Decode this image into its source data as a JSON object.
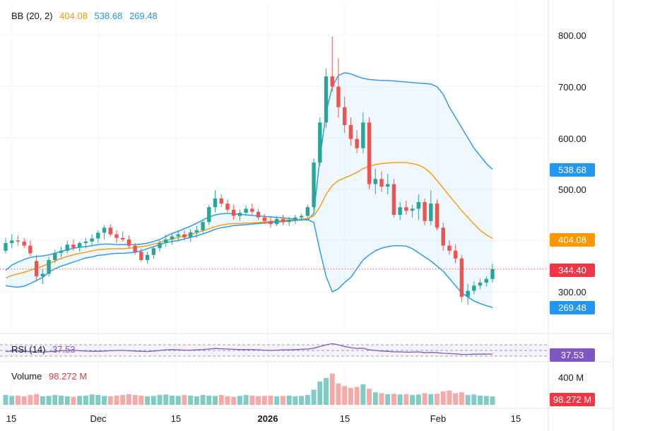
{
  "colors": {
    "up": "#26a69a",
    "down": "#ef5350",
    "vol_up": "#80cbc4",
    "vol_down": "#f7a9a7",
    "bb_band": "#2196f3",
    "bb_mid": "#ff9800",
    "rsi": "#7e57c2",
    "last_price": "#f23645"
  },
  "legend": {
    "bb": {
      "label": "BB (20, 2)",
      "basis": "404.08",
      "upper": "538.68",
      "lower": "269.48"
    },
    "rsi": {
      "label": "RSI (14)",
      "value": "37.53"
    },
    "volume": {
      "label": "Volume",
      "value": "98.272 M"
    }
  },
  "price_axis": {
    "ticks": [
      "800.00",
      "700.00",
      "600.00",
      "500.00",
      "300.00"
    ],
    "tag_upper": "538.68",
    "tag_basis": "404.08",
    "tag_last": "344.40",
    "tag_lower": "269.48",
    "tag_rsi": "37.53",
    "vol_tick": "400 M",
    "tag_volume": "98.272 M"
  },
  "time_axis": [
    "15",
    "Dec",
    "15",
    "2026",
    "15",
    "Feb",
    "15"
  ],
  "chart_data": {
    "type": "candlestick",
    "ylim": [
      230,
      840
    ],
    "last_price": 344.4,
    "candles": [
      [
        380,
        405,
        375,
        395
      ],
      [
        395,
        412,
        385,
        400
      ],
      [
        400,
        410,
        390,
        398
      ],
      [
        398,
        405,
        385,
        390
      ],
      [
        390,
        400,
        370,
        375
      ],
      [
        360,
        372,
        320,
        330
      ],
      [
        330,
        345,
        315,
        335
      ],
      [
        335,
        368,
        330,
        362
      ],
      [
        362,
        382,
        356,
        376
      ],
      [
        376,
        388,
        368,
        380
      ],
      [
        380,
        400,
        375,
        392
      ],
      [
        392,
        402,
        380,
        386
      ],
      [
        386,
        398,
        378,
        395
      ],
      [
        395,
        405,
        385,
        398
      ],
      [
        398,
        412,
        390,
        404
      ],
      [
        404,
        420,
        395,
        415
      ],
      [
        415,
        430,
        402,
        425
      ],
      [
        425,
        432,
        408,
        412
      ],
      [
        412,
        420,
        395,
        405
      ],
      [
        405,
        418,
        398,
        402
      ],
      [
        402,
        410,
        385,
        390
      ],
      [
        390,
        395,
        372,
        378
      ],
      [
        378,
        385,
        358,
        362
      ],
      [
        362,
        378,
        355,
        372
      ],
      [
        372,
        388,
        365,
        385
      ],
      [
        385,
        400,
        378,
        395
      ],
      [
        395,
        412,
        388,
        402
      ],
      [
        402,
        414,
        392,
        408
      ],
      [
        408,
        420,
        398,
        412
      ],
      [
        412,
        420,
        400,
        406
      ],
      [
        406,
        422,
        398,
        416
      ],
      [
        416,
        428,
        405,
        420
      ],
      [
        420,
        440,
        415,
        436
      ],
      [
        436,
        470,
        430,
        465
      ],
      [
        465,
        498,
        455,
        482
      ],
      [
        482,
        490,
        465,
        472
      ],
      [
        472,
        480,
        455,
        460
      ],
      [
        460,
        470,
        440,
        448
      ],
      [
        448,
        460,
        438,
        454
      ],
      [
        454,
        468,
        448,
        462
      ],
      [
        462,
        472,
        450,
        456
      ],
      [
        456,
        462,
        440,
        445
      ],
      [
        445,
        452,
        432,
        438
      ],
      [
        438,
        446,
        425,
        432
      ],
      [
        432,
        448,
        428,
        442
      ],
      [
        442,
        450,
        430,
        436
      ],
      [
        436,
        446,
        428,
        440
      ],
      [
        440,
        450,
        432,
        445
      ],
      [
        445,
        452,
        438,
        448
      ],
      [
        448,
        470,
        445,
        465
      ],
      [
        465,
        560,
        460,
        552
      ],
      [
        552,
        640,
        545,
        630
      ],
      [
        630,
        735,
        620,
        720
      ],
      [
        720,
        798,
        690,
        700
      ],
      [
        700,
        755,
        640,
        660
      ],
      [
        660,
        680,
        610,
        625
      ],
      [
        625,
        640,
        585,
        598
      ],
      [
        598,
        615,
        570,
        580
      ],
      [
        580,
        650,
        570,
        630
      ],
      [
        630,
        640,
        500,
        510
      ],
      [
        510,
        540,
        490,
        520
      ],
      [
        520,
        535,
        495,
        505
      ],
      [
        505,
        530,
        490,
        510
      ],
      [
        510,
        520,
        445,
        450
      ],
      [
        450,
        475,
        440,
        465
      ],
      [
        465,
        478,
        450,
        458
      ],
      [
        458,
        470,
        445,
        462
      ],
      [
        462,
        490,
        440,
        475
      ],
      [
        475,
        482,
        430,
        438
      ],
      [
        438,
        498,
        430,
        472
      ],
      [
        472,
        480,
        420,
        425
      ],
      [
        425,
        435,
        380,
        390
      ],
      [
        390,
        400,
        372,
        380
      ],
      [
        380,
        392,
        355,
        365
      ],
      [
        365,
        372,
        280,
        290
      ],
      [
        290,
        315,
        275,
        302
      ],
      [
        302,
        320,
        295,
        312
      ],
      [
        312,
        325,
        305,
        318
      ],
      [
        318,
        330,
        310,
        325
      ],
      [
        325,
        355,
        318,
        344.4
      ]
    ],
    "bb_upper": [
      342,
      352,
      358,
      363,
      367,
      369,
      370,
      372,
      375,
      379,
      382,
      385,
      387,
      388,
      390,
      392,
      393,
      393,
      392,
      392,
      392,
      392,
      393,
      395,
      398,
      402,
      408,
      414,
      418,
      423,
      428,
      434,
      440,
      446,
      450,
      452,
      453,
      452,
      451,
      450,
      449,
      448,
      447,
      446,
      445,
      444,
      443,
      442,
      441,
      440,
      453,
      560,
      650,
      700,
      722,
      727,
      725,
      720,
      716,
      714,
      713,
      712,
      712,
      711,
      710,
      709,
      708,
      707,
      706,
      705,
      700,
      685,
      660,
      640,
      620,
      600,
      580,
      565,
      550,
      538.68
    ],
    "bb_basis": [
      327,
      332,
      335,
      338,
      342,
      346,
      350,
      355,
      360,
      365,
      369,
      372,
      375,
      377,
      380,
      382,
      383,
      384,
      384,
      384,
      385,
      386,
      388,
      390,
      393,
      396,
      400,
      403,
      406,
      409,
      412,
      415,
      419,
      423,
      427,
      430,
      432,
      433,
      433,
      434,
      434,
      435,
      436,
      437,
      438,
      439,
      440,
      441,
      442,
      443,
      448,
      466,
      490,
      507,
      517,
      522,
      527,
      533,
      540,
      545,
      548,
      550,
      551,
      552,
      552,
      552,
      550,
      547,
      541,
      531,
      517,
      502,
      487,
      473,
      458,
      445,
      432,
      420,
      411,
      404.08
    ],
    "bb_lower": [
      312,
      310,
      309,
      311,
      316,
      322,
      328,
      338,
      345,
      350,
      354,
      358,
      362,
      366,
      368,
      371,
      372,
      374,
      375,
      375,
      376,
      377,
      380,
      384,
      388,
      392,
      396,
      398,
      400,
      403,
      406,
      409,
      413,
      417,
      422,
      425,
      427,
      429,
      430,
      431,
      432,
      433,
      434,
      435,
      436,
      437,
      438,
      439,
      440,
      441,
      435,
      380,
      330,
      300,
      306,
      318,
      328,
      345,
      362,
      372,
      380,
      385,
      388,
      390,
      390,
      389,
      384,
      376,
      368,
      360,
      350,
      340,
      326,
      312,
      298,
      290,
      282,
      277,
      273,
      269.48
    ],
    "rsi": [
      46,
      48,
      49,
      47,
      46,
      45,
      44,
      46,
      47,
      49,
      50,
      51,
      49,
      48,
      47,
      47,
      48,
      49,
      50,
      50,
      49,
      48,
      47,
      46,
      48,
      50,
      52,
      53,
      52,
      51,
      51,
      52,
      53,
      55,
      57,
      56,
      55,
      54,
      53,
      53,
      53,
      52,
      51,
      50,
      51,
      52,
      52,
      53,
      54,
      55,
      58,
      64,
      70,
      74,
      70,
      64,
      60,
      57,
      58,
      52,
      50,
      48,
      47,
      45,
      45,
      44,
      44,
      45,
      42,
      43,
      42,
      40,
      39,
      38,
      36,
      36,
      37,
      37,
      37,
      37.53
    ],
    "volume": [
      55,
      50,
      52,
      48,
      55,
      60,
      48,
      50,
      55,
      52,
      48,
      45,
      50,
      52,
      58,
      55,
      50,
      48,
      52,
      55,
      60,
      55,
      52,
      48,
      50,
      55,
      58,
      52,
      50,
      55,
      52,
      48,
      55,
      52,
      50,
      55,
      48,
      45,
      50,
      55,
      52,
      48,
      50,
      52,
      48,
      50,
      52,
      48,
      50,
      55,
      85,
      130,
      150,
      175,
      120,
      105,
      95,
      100,
      115,
      90,
      70,
      65,
      60,
      62,
      58,
      60,
      55,
      58,
      65,
      60,
      62,
      75,
      80,
      65,
      70,
      55,
      58,
      52,
      50,
      47
    ]
  }
}
